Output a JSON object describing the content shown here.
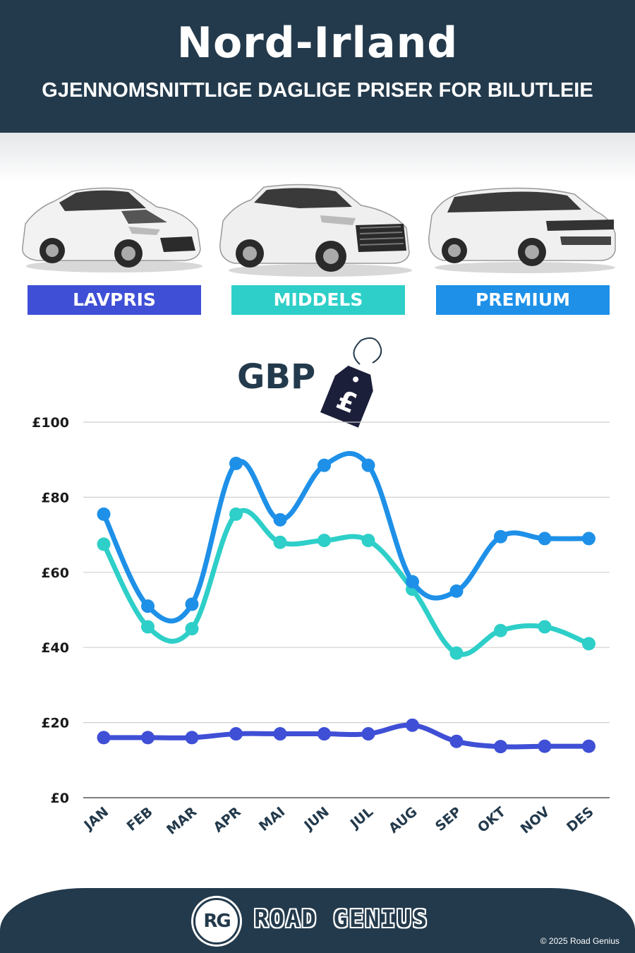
{
  "header": {
    "title": "Nord-Irland",
    "subtitle": "GJENNOMSNITTLIGE DAGLIGE PRISER FOR BILUTLEIE"
  },
  "categories": [
    {
      "label": "LAVPRIS",
      "color": "#3f4fd6",
      "car": "hatchback-car-image"
    },
    {
      "label": "MIDDELS",
      "color": "#2ecfc8",
      "car": "suv-car-image"
    },
    {
      "label": "PREMIUM",
      "color": "#1e90e8",
      "car": "premium-suv-car-image"
    }
  ],
  "currency": {
    "label": "GBP",
    "tag_symbol": "£"
  },
  "chart_data": {
    "type": "line",
    "title": "",
    "xlabel": "",
    "ylabel": "",
    "categories": [
      "JAN",
      "FEB",
      "MAR",
      "APR",
      "MAI",
      "JUN",
      "JUL",
      "AUG",
      "SEP",
      "OKT",
      "NOV",
      "DES"
    ],
    "ylim": [
      0,
      100
    ],
    "yticks": [
      "£0",
      "£20",
      "£40",
      "£60",
      "£80",
      "£100"
    ],
    "ytick_values": [
      0,
      20,
      40,
      60,
      80,
      100
    ],
    "grid": true,
    "series": [
      {
        "name": "LAVPRIS",
        "color": "#3f4fd6",
        "values": [
          16,
          16,
          16,
          17,
          17,
          17,
          17,
          19.3,
          15,
          13.6,
          13.7,
          13.7
        ]
      },
      {
        "name": "MIDDELS",
        "color": "#2ecfc8",
        "values": [
          67.5,
          45.5,
          45,
          75.5,
          68,
          68.5,
          68.5,
          55.5,
          38.5,
          44.5,
          45.5,
          41
        ]
      },
      {
        "name": "PREMIUM",
        "color": "#1e90e8",
        "values": [
          75.5,
          51,
          51.5,
          89,
          74,
          88.5,
          88.5,
          57.5,
          55,
          69.5,
          69,
          69
        ]
      }
    ]
  },
  "footer": {
    "logo": "RG",
    "brand": "ROAD GENIUS",
    "copyright": "© 2025 Road Genius"
  }
}
